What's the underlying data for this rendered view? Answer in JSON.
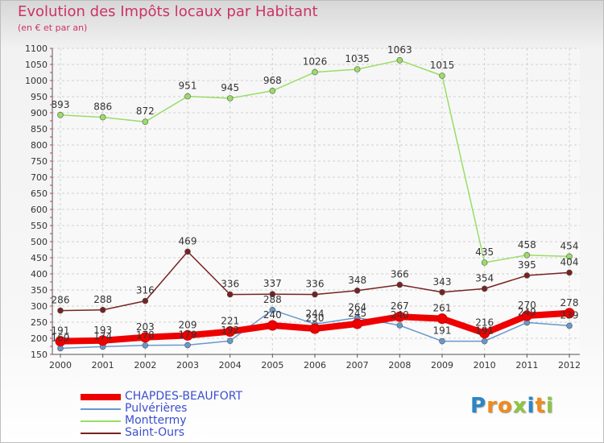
{
  "header": {
    "title": "Evolution des Impôts locaux par Habitant",
    "subtitle": "(en € et par an)"
  },
  "brand": {
    "logo_text": "Proxiti",
    "letters": [
      {
        "ch": "P",
        "color": "#2b86c5"
      },
      {
        "ch": "r",
        "color": "#f08a1c"
      },
      {
        "ch": "o",
        "color": "#f08a1c"
      },
      {
        "ch": "x",
        "color": "#8cc63f"
      },
      {
        "ch": "i",
        "color": "#2b86c5"
      },
      {
        "ch": "t",
        "color": "#f08a1c"
      },
      {
        "ch": "i",
        "color": "#8cc63f"
      }
    ]
  },
  "chart_data": {
    "type": "line",
    "title": "Evolution des Impôts locaux par Habitant",
    "subtitle": "(en € et par an)",
    "xlabel": "",
    "ylabel": "",
    "x": [
      "2000",
      "2001",
      "2002",
      "2003",
      "2004",
      "2005",
      "2006",
      "2007",
      "2008",
      "2009",
      "2010",
      "2011",
      "2012"
    ],
    "ylim": [
      150,
      1100
    ],
    "yticks": [
      150,
      200,
      250,
      300,
      350,
      400,
      450,
      500,
      550,
      600,
      650,
      700,
      750,
      800,
      850,
      900,
      950,
      1000,
      1050,
      1100
    ],
    "grid": true,
    "legend_position": "bottom-left",
    "series": [
      {
        "name": "CHAPDES-BEAUFORT",
        "color": "#ee0000",
        "values": [
          191,
          193,
          203,
          209,
          221,
          240,
          230,
          245,
          267,
          261,
          216,
          270,
          278
        ],
        "labels": [
          "191",
          "193",
          "203",
          "209",
          "221",
          "240",
          "230",
          "245",
          "267",
          "261",
          "216",
          "270",
          "278"
        ]
      },
      {
        "name": "Pulvérières",
        "color": "#6699cc",
        "values": [
          169,
          174,
          178,
          179,
          192,
          288,
          244,
          264,
          240,
          191,
          191,
          249,
          239
        ],
        "labels": [
          "169",
          "174",
          "178",
          "179",
          "192",
          "288",
          "244",
          "264",
          "240",
          "191",
          "191",
          "249",
          "239"
        ]
      },
      {
        "name": "Monttermy",
        "color": "#99dd66",
        "values": [
          893,
          886,
          872,
          951,
          945,
          968,
          1026,
          1035,
          1063,
          1015,
          435,
          458,
          454
        ],
        "labels": [
          "893",
          "886",
          "872",
          "951",
          "945",
          "968",
          "1026",
          "1035",
          "1063",
          "1015",
          "435",
          "458",
          "454"
        ]
      },
      {
        "name": "Saint-Ours",
        "color": "#772222",
        "values": [
          286,
          288,
          316,
          469,
          336,
          337,
          336,
          348,
          366,
          343,
          354,
          395,
          404
        ],
        "labels": [
          "286",
          "288",
          "316",
          "469",
          "336",
          "337",
          "336",
          "348",
          "366",
          "343",
          "354",
          "395",
          "404"
        ]
      }
    ]
  }
}
